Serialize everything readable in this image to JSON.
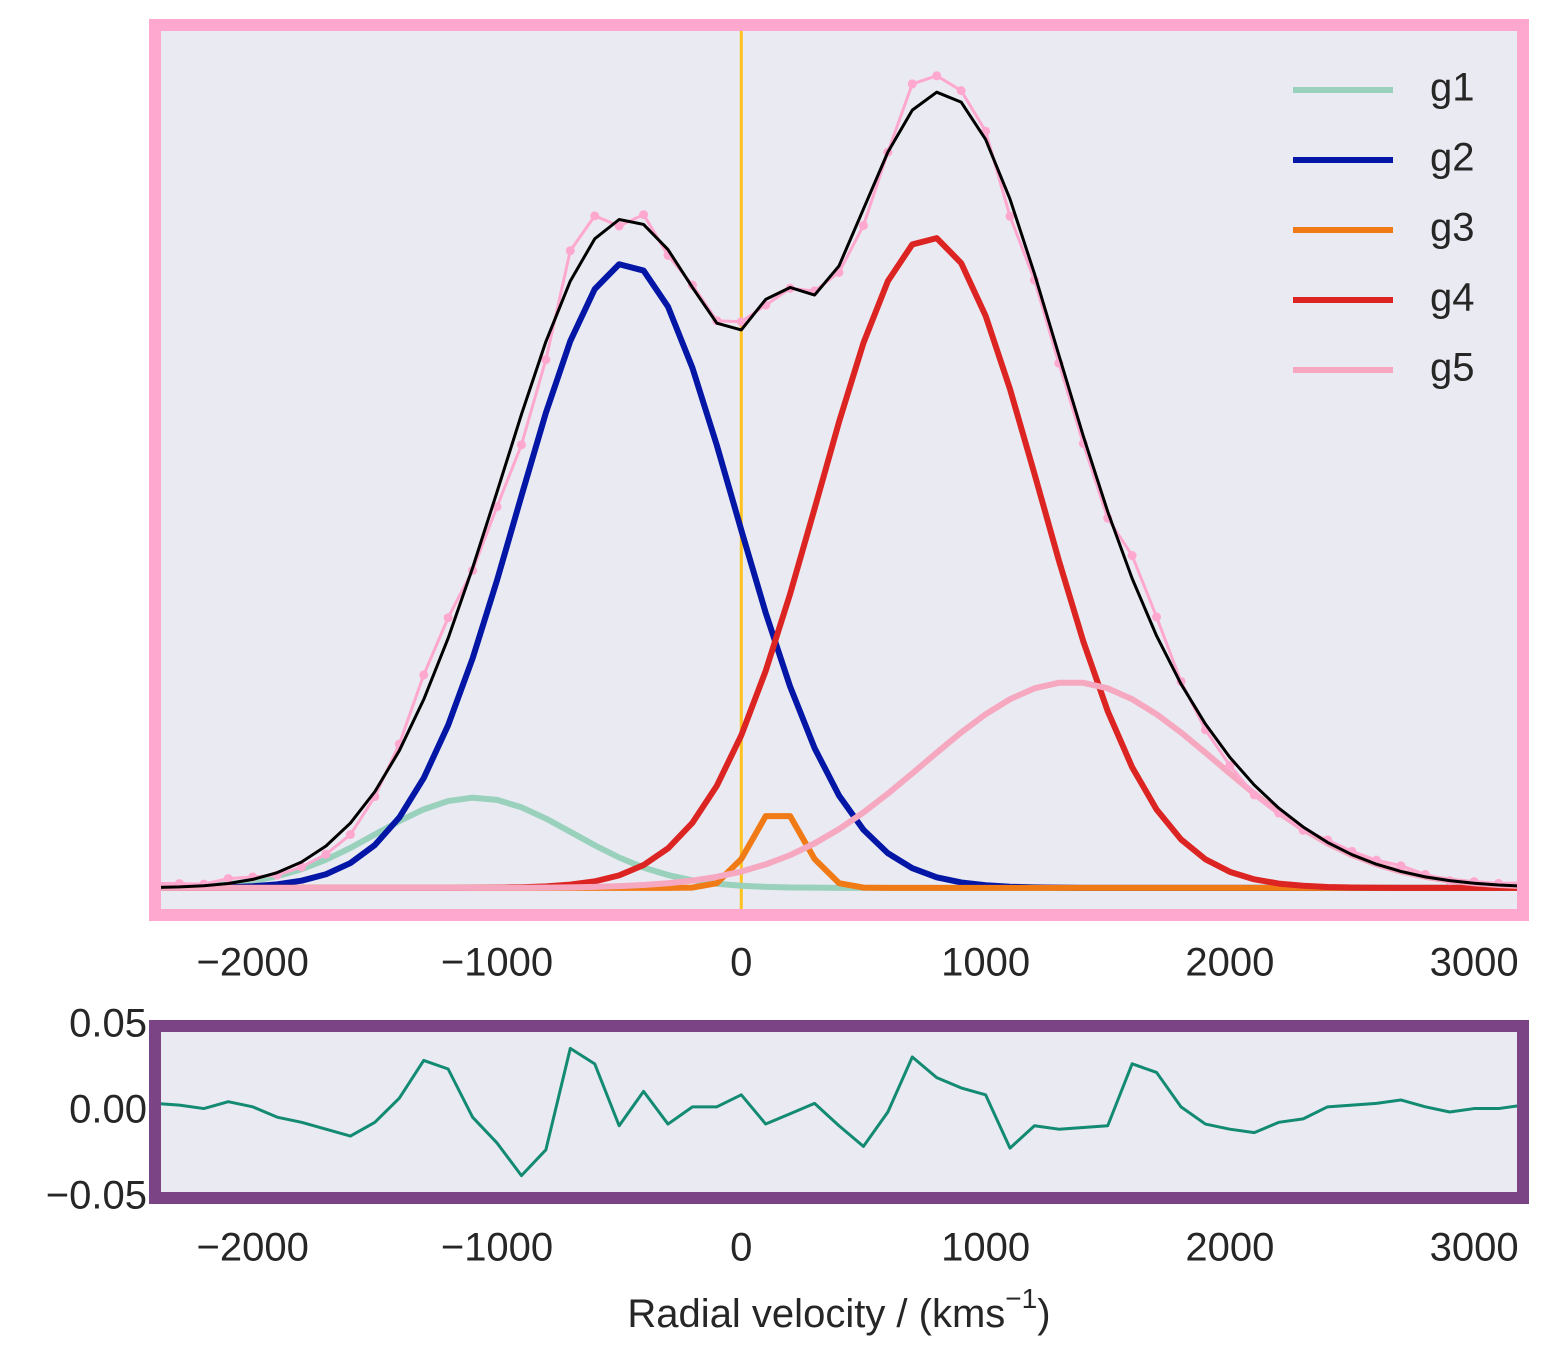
{
  "chart_data": [
    {
      "type": "line",
      "x": [
        -2400,
        -2300,
        -2200,
        -2100,
        -2000,
        -1900,
        -1800,
        -1700,
        -1600,
        -1500,
        -1400,
        -1300,
        -1200,
        -1100,
        -1000,
        -900,
        -800,
        -700,
        -600,
        -500,
        -400,
        -300,
        -200,
        -100,
        0,
        100,
        200,
        300,
        400,
        500,
        600,
        700,
        800,
        900,
        1000,
        1100,
        1200,
        1300,
        1400,
        1500,
        1600,
        1700,
        1800,
        1900,
        2000,
        2100,
        2200,
        2300,
        2400,
        2500,
        2600,
        2700,
        2800,
        2900,
        3000,
        3100,
        3200
      ],
      "xlim": [
        -2400,
        3200
      ],
      "ylim": [
        -0.033,
        1.052
      ],
      "xticks": [
        {
          "value": -2000,
          "label": "−2000"
        },
        {
          "value": -1000,
          "label": "−1000"
        },
        0,
        1000,
        2000,
        3000
      ],
      "vlines": [
        0
      ],
      "vline_color": "#ffc21f",
      "frame_color": "#ffa8cf",
      "background": "#eaeaf2",
      "legend": "upper right",
      "series": [
        {
          "name": "g1",
          "color": "#99d1bd",
          "values": [
            0.0005,
            0.0011,
            0.0023,
            0.0045,
            0.0083,
            0.0142,
            0.0228,
            0.0344,
            0.0488,
            0.0651,
            0.0815,
            0.0958,
            0.1059,
            0.11,
            0.1073,
            0.0983,
            0.0846,
            0.0684,
            0.052,
            0.0371,
            0.0248,
            0.0157,
            0.0093,
            0.0051,
            0.0027,
            0.0013,
            0.0006,
            0.0003,
            0.0001,
            0,
            0,
            0,
            0,
            0,
            0,
            0,
            0,
            0,
            0,
            0,
            0,
            0,
            0,
            0,
            0,
            0,
            0,
            0,
            0,
            0,
            0,
            0,
            0,
            0,
            0,
            0,
            0
          ]
        },
        {
          "name": "g2",
          "color": "#0316a6",
          "values": [
            0.0001,
            0.0002,
            0.0004,
            0.0009,
            0.0021,
            0.0044,
            0.0088,
            0.0167,
            0.0303,
            0.0523,
            0.0858,
            0.1339,
            0.1984,
            0.2797,
            0.3749,
            0.4778,
            0.5791,
            0.6667,
            0.73,
            0.7603,
            0.7526,
            0.7086,
            0.634,
            0.5395,
            0.4362,
            0.3353,
            0.2454,
            0.1705,
            0.1127,
            0.0709,
            0.0423,
            0.0241,
            0.013,
            0.0067,
            0.0033,
            0.0015,
            0.0007,
            0.0003,
            0.0001,
            0,
            0,
            0,
            0,
            0,
            0,
            0,
            0,
            0,
            0,
            0,
            0,
            0,
            0,
            0,
            0,
            0,
            0
          ]
        },
        {
          "name": "g3",
          "color": "#f07a16",
          "values": [
            0,
            0,
            0,
            0,
            0,
            0,
            0,
            0,
            0,
            0,
            0,
            0,
            0,
            0,
            0,
            0,
            0,
            0,
            0,
            0,
            0,
            0,
            0.0004,
            0.0058,
            0.0353,
            0.0875,
            0.0875,
            0.0353,
            0.0058,
            0.0004,
            0,
            0,
            0,
            0,
            0,
            0,
            0,
            0,
            0,
            0,
            0,
            0,
            0,
            0,
            0,
            0,
            0,
            0,
            0,
            0,
            0,
            0,
            0,
            0,
            0,
            0,
            0
          ]
        },
        {
          "name": "g4",
          "color": "#dc2522",
          "values": [
            0,
            0,
            0,
            0,
            0,
            0,
            0,
            0,
            0,
            0,
            0,
            0,
            0.0001,
            0.0002,
            0.0004,
            0.0009,
            0.0019,
            0.004,
            0.008,
            0.0153,
            0.0279,
            0.0482,
            0.0794,
            0.1246,
            0.186,
            0.2647,
            0.3585,
            0.4624,
            0.568,
            0.6643,
            0.7398,
            0.7845,
            0.7922,
            0.7618,
            0.6976,
            0.6082,
            0.505,
            0.3993,
            0.3006,
            0.2155,
            0.1471,
            0.0956,
            0.0592,
            0.0349,
            0.0196,
            0.0105,
            0.0053,
            0.0026,
            0.0012,
            0.0005,
            0.0002,
            0.0001,
            0,
            0,
            0,
            0,
            0
          ]
        },
        {
          "name": "g5",
          "color": "#f5a8c0",
          "values": [
            0,
            0,
            0,
            0,
            0,
            0,
            0,
            0,
            0,
            0,
            0,
            0,
            0,
            0.0001,
            0.0001,
            0.0002,
            0.0004,
            0.0007,
            0.0013,
            0.0022,
            0.0036,
            0.0057,
            0.0089,
            0.0135,
            0.02,
            0.0287,
            0.04,
            0.0543,
            0.0717,
            0.092,
            0.1149,
            0.1396,
            0.1649,
            0.1895,
            0.2117,
            0.2301,
            0.2433,
            0.2501,
            0.2501,
            0.2433,
            0.2301,
            0.2117,
            0.1895,
            0.1649,
            0.1396,
            0.1149,
            0.092,
            0.0717,
            0.0543,
            0.04,
            0.0287,
            0.02,
            0.0135,
            0.0089,
            0.0057,
            0.0036,
            0.0022
          ]
        },
        {
          "color": "#ffa8cf",
          "markers": true,
          "values": [
            0.0056,
            0.0053,
            0.0047,
            0.0114,
            0.0134,
            0.0156,
            0.0256,
            0.0411,
            0.0651,
            0.1114,
            0.1753,
            0.2597,
            0.3294,
            0.387,
            0.4647,
            0.5402,
            0.644,
            0.7768,
            0.8193,
            0.8069,
            0.8209,
            0.7712,
            0.735,
            0.6915,
            0.6902,
            0.7105,
            0.731,
            0.7278,
            0.7503,
            0.8076,
            0.897,
            0.9802,
            0.9901,
            0.972,
            0.9226,
            0.8188,
            0.741,
            0.6397,
            0.5418,
            0.4508,
            0.4052,
            0.3303,
            0.2517,
            0.1928,
            0.1492,
            0.1134,
            0.0913,
            0.0703,
            0.0585,
            0.0445,
            0.0339,
            0.0271,
            0.0165,
            0.0089,
            0.0077,
            0.0056,
            0.0062
          ]
        },
        {
          "color": "#000000",
          "values": [
            0.0006,
            0.0013,
            0.0027,
            0.0054,
            0.0104,
            0.0186,
            0.0316,
            0.0511,
            0.0791,
            0.1174,
            0.1673,
            0.2297,
            0.3044,
            0.39,
            0.4827,
            0.5772,
            0.666,
            0.7398,
            0.7913,
            0.8149,
            0.8089,
            0.7782,
            0.732,
            0.6885,
            0.6802,
            0.7175,
            0.732,
            0.7228,
            0.7583,
            0.8276,
            0.897,
            0.9482,
            0.9701,
            0.958,
            0.9126,
            0.8398,
            0.749,
            0.6497,
            0.5508,
            0.4588,
            0.3772,
            0.3073,
            0.2487,
            0.1998,
            0.1592,
            0.1254,
            0.0973,
            0.0743,
            0.0555,
            0.0405,
            0.0289,
            0.0201,
            0.0135,
            0.0089,
            0.0057,
            0.0036,
            0.0022
          ]
        }
      ]
    },
    {
      "type": "line",
      "x": [
        -2400,
        -2300,
        -2200,
        -2100,
        -2000,
        -1900,
        -1800,
        -1700,
        -1600,
        -1500,
        -1400,
        -1300,
        -1200,
        -1100,
        -1000,
        -900,
        -800,
        -700,
        -600,
        -500,
        -400,
        -300,
        -200,
        -100,
        0,
        100,
        200,
        300,
        400,
        500,
        600,
        700,
        800,
        900,
        1000,
        1100,
        1200,
        1300,
        1400,
        1500,
        1600,
        1700,
        1800,
        1900,
        2000,
        2100,
        2200,
        2300,
        2400,
        2500,
        2600,
        2700,
        2800,
        2900,
        3000,
        3100,
        3200
      ],
      "xlim": [
        -2400,
        3200
      ],
      "ylim": [
        -0.05,
        0.05
      ],
      "xticks": [
        {
          "value": -2000,
          "label": "−2000"
        },
        {
          "value": -1000,
          "label": "−1000"
        },
        0,
        1000,
        2000,
        3000
      ],
      "yticks": [
        {
          "value": 0.05,
          "label": "0.05"
        },
        {
          "value": 0,
          "label": "0.00"
        },
        {
          "value": -0.05,
          "label": "−0.05"
        }
      ],
      "xlabel": [
        "Radial velocity / (kms",
        "−1",
        ")"
      ],
      "frame_color": "#7b4585",
      "background": "#eaeaf2",
      "series": [
        {
          "color": "#138a72",
          "values": [
            0.005,
            0.004,
            0.002,
            0.006,
            0.003,
            -0.003,
            -0.006,
            -0.01,
            -0.014,
            -0.006,
            0.008,
            0.03,
            0.025,
            -0.003,
            -0.018,
            -0.037,
            -0.022,
            0.037,
            0.028,
            -0.008,
            0.012,
            -0.007,
            0.003,
            0.003,
            0.01,
            -0.007,
            -0.001,
            0.005,
            -0.008,
            -0.02,
            0.0,
            0.032,
            0.02,
            0.014,
            0.01,
            -0.021,
            -0.008,
            -0.01,
            -0.009,
            -0.008,
            0.028,
            0.023,
            0.003,
            -0.007,
            -0.01,
            -0.012,
            -0.006,
            -0.004,
            0.003,
            0.004,
            0.005,
            0.007,
            0.003,
            0.0,
            0.002,
            0.002,
            0.004
          ]
        }
      ]
    }
  ]
}
